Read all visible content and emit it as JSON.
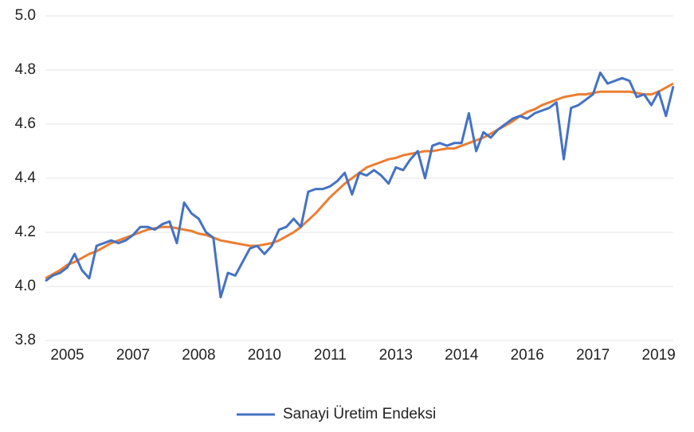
{
  "chart_data": {
    "type": "line",
    "categories": [
      null,
      null,
      null,
      "2005",
      null,
      null,
      null,
      null,
      null,
      null,
      null,
      null,
      "2007",
      null,
      null,
      null,
      null,
      null,
      null,
      null,
      null,
      "2008",
      null,
      null,
      null,
      null,
      null,
      null,
      null,
      null,
      "2010",
      null,
      null,
      null,
      null,
      null,
      null,
      null,
      null,
      "2011",
      null,
      null,
      null,
      null,
      null,
      null,
      null,
      null,
      "2013",
      null,
      null,
      null,
      null,
      null,
      null,
      null,
      null,
      "2014",
      null,
      null,
      null,
      null,
      null,
      null,
      null,
      null,
      "2016",
      null,
      null,
      null,
      null,
      null,
      null,
      null,
      null,
      "2017",
      null,
      null,
      null,
      null,
      null,
      null,
      null,
      null,
      "2019",
      null,
      null
    ],
    "series": [
      {
        "name": "Sanayi Üretim Endeksi",
        "color": "#4472c4",
        "values": [
          4.02,
          4.04,
          4.05,
          4.07,
          4.12,
          4.06,
          4.03,
          4.15,
          4.16,
          4.17,
          4.16,
          4.17,
          4.19,
          4.22,
          4.22,
          4.21,
          4.23,
          4.24,
          4.16,
          4.31,
          4.27,
          4.25,
          4.2,
          4.18,
          3.96,
          4.05,
          4.04,
          4.09,
          4.14,
          4.15,
          4.12,
          4.15,
          4.21,
          4.22,
          4.25,
          4.22,
          4.35,
          4.36,
          4.36,
          4.37,
          4.39,
          4.42,
          4.34,
          4.42,
          4.41,
          4.43,
          4.41,
          4.38,
          4.44,
          4.43,
          4.47,
          4.5,
          4.4,
          4.52,
          4.53,
          4.52,
          4.53,
          4.53,
          4.64,
          4.5,
          4.57,
          4.55,
          4.58,
          4.6,
          4.62,
          4.63,
          4.62,
          4.64,
          4.65,
          4.66,
          4.68,
          4.47,
          4.66,
          4.67,
          4.69,
          4.71,
          4.79,
          4.75,
          4.76,
          4.77,
          4.76,
          4.7,
          4.71,
          4.67,
          4.72,
          4.63,
          4.74
        ]
      },
      {
        "color": "#ed7d31",
        "values": [
          4.03,
          4.045,
          4.06,
          4.08,
          4.09,
          4.105,
          4.12,
          4.13,
          4.145,
          4.16,
          4.17,
          4.18,
          4.19,
          4.2,
          4.21,
          4.215,
          4.22,
          4.22,
          4.215,
          4.21,
          4.205,
          4.195,
          4.19,
          4.18,
          4.17,
          4.165,
          4.16,
          4.155,
          4.15,
          4.15,
          4.155,
          4.16,
          4.17,
          4.185,
          4.2,
          4.22,
          4.245,
          4.27,
          4.3,
          4.33,
          4.355,
          4.38,
          4.4,
          4.42,
          4.44,
          4.45,
          4.46,
          4.47,
          4.475,
          4.485,
          4.49,
          4.495,
          4.5,
          4.5,
          4.505,
          4.51,
          4.51,
          4.52,
          4.53,
          4.54,
          4.55,
          4.565,
          4.58,
          4.595,
          4.61,
          4.63,
          4.645,
          4.655,
          4.67,
          4.68,
          4.69,
          4.7,
          4.705,
          4.71,
          4.71,
          4.715,
          4.72,
          4.72,
          4.72,
          4.72,
          4.72,
          4.715,
          4.71,
          4.71,
          4.72,
          4.735,
          4.75
        ]
      }
    ],
    "ylim": [
      3.8,
      5.0
    ],
    "yticks": [
      3.8,
      {
        "value": 4,
        "label": "4.0"
      },
      4.2,
      4.4,
      4.6,
      4.8,
      {
        "value": 5,
        "label": "5.0"
      }
    ],
    "grid": true,
    "legend": "bottom"
  }
}
